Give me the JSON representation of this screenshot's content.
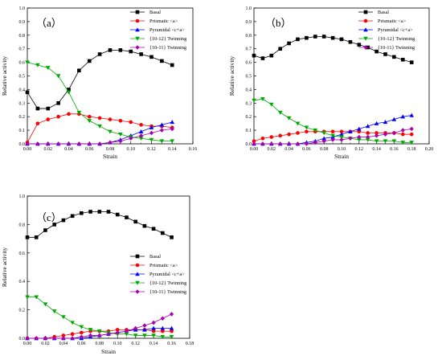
{
  "chart_data": [
    {
      "type": "line",
      "panel_label": "（a）",
      "xlabel": "Strain",
      "ylabel": "Relative activity",
      "xlim": [
        0,
        0.16
      ],
      "ylim": [
        0,
        1.0
      ],
      "xticks": [
        "0.00",
        "0.02",
        "0.04",
        "0.06",
        "0.08",
        "0.10",
        "0.12",
        "0.14",
        "0.16"
      ],
      "yticks": [
        "0.0",
        "0.1",
        "0.2",
        "0.3",
        "0.4",
        "0.5",
        "0.6",
        "0.7",
        "0.8",
        "0.9",
        "1.0"
      ],
      "legend_position": "top-right",
      "series": [
        {
          "name": "Basal",
          "color": "#000000",
          "marker": "square",
          "x": [
            0,
            0.01,
            0.02,
            0.03,
            0.04,
            0.05,
            0.06,
            0.07,
            0.08,
            0.09,
            0.1,
            0.11,
            0.12,
            0.13,
            0.14
          ],
          "y": [
            0.38,
            0.26,
            0.26,
            0.3,
            0.4,
            0.54,
            0.61,
            0.66,
            0.69,
            0.69,
            0.68,
            0.66,
            0.64,
            0.61,
            0.58
          ]
        },
        {
          "name": "Prismatic <a>",
          "color": "#ff0000",
          "marker": "circle",
          "x": [
            0,
            0.01,
            0.02,
            0.03,
            0.04,
            0.05,
            0.06,
            0.07,
            0.08,
            0.09,
            0.1,
            0.11,
            0.12,
            0.13,
            0.14
          ],
          "y": [
            0.01,
            0.15,
            0.18,
            0.2,
            0.22,
            0.22,
            0.2,
            0.19,
            0.18,
            0.17,
            0.16,
            0.14,
            0.13,
            0.13,
            0.12
          ]
        },
        {
          "name": "Pyramidal <c+a>",
          "color": "#0000ff",
          "marker": "triangle-up",
          "x": [
            0,
            0.01,
            0.02,
            0.03,
            0.04,
            0.05,
            0.06,
            0.07,
            0.08,
            0.09,
            0.1,
            0.11,
            0.12,
            0.13,
            0.14
          ],
          "y": [
            0,
            0,
            0,
            0,
            0,
            0,
            0,
            0,
            0.01,
            0.03,
            0.06,
            0.09,
            0.12,
            0.14,
            0.16
          ]
        },
        {
          "name": "{10-12} Twinning",
          "color": "#00aa00",
          "marker": "triangle-down",
          "x": [
            0,
            0.01,
            0.02,
            0.03,
            0.04,
            0.05,
            0.06,
            0.07,
            0.08,
            0.09,
            0.1,
            0.11,
            0.12,
            0.13,
            0.14
          ],
          "y": [
            0.6,
            0.58,
            0.56,
            0.5,
            0.38,
            0.23,
            0.17,
            0.13,
            0.09,
            0.07,
            0.05,
            0.04,
            0.03,
            0.02,
            0.02
          ]
        },
        {
          "name": "{10-11} Twinning",
          "color": "#aa00aa",
          "marker": "diamond",
          "x": [
            0,
            0.01,
            0.02,
            0.03,
            0.04,
            0.05,
            0.06,
            0.07,
            0.08,
            0.09,
            0.1,
            0.11,
            0.12,
            0.13,
            0.14
          ],
          "y": [
            0,
            0,
            0,
            0,
            0,
            0,
            0,
            0,
            0.01,
            0.02,
            0.04,
            0.06,
            0.08,
            0.1,
            0.11
          ]
        }
      ]
    },
    {
      "type": "line",
      "panel_label": "（b）",
      "xlabel": "Strain",
      "ylabel": "Relative activity",
      "xlim": [
        0,
        0.2
      ],
      "ylim": [
        0,
        1.0
      ],
      "xticks": [
        "0.00",
        "0.02",
        "0.04",
        "0.06",
        "0.08",
        "0.10",
        "0.12",
        "0.14",
        "0.16",
        "0.18",
        "0.20"
      ],
      "yticks": [
        "0.0",
        "0.1",
        "0.2",
        "0.3",
        "0.4",
        "0.5",
        "0.6",
        "0.7",
        "0.8",
        "0.9",
        "1.0"
      ],
      "legend_position": "top-right",
      "series": [
        {
          "name": "Basal",
          "color": "#000000",
          "marker": "square",
          "x": [
            0,
            0.01,
            0.02,
            0.03,
            0.04,
            0.05,
            0.06,
            0.07,
            0.08,
            0.09,
            0.1,
            0.11,
            0.12,
            0.13,
            0.14,
            0.15,
            0.16,
            0.17,
            0.18
          ],
          "y": [
            0.65,
            0.63,
            0.65,
            0.7,
            0.74,
            0.77,
            0.78,
            0.79,
            0.79,
            0.78,
            0.77,
            0.75,
            0.73,
            0.71,
            0.68,
            0.66,
            0.64,
            0.62,
            0.6
          ]
        },
        {
          "name": "Prismatic <a>",
          "color": "#ff0000",
          "marker": "circle",
          "x": [
            0,
            0.01,
            0.02,
            0.03,
            0.04,
            0.05,
            0.06,
            0.07,
            0.08,
            0.09,
            0.1,
            0.11,
            0.12,
            0.13,
            0.14,
            0.15,
            0.16,
            0.17,
            0.18
          ],
          "y": [
            0.02,
            0.04,
            0.05,
            0.06,
            0.07,
            0.08,
            0.09,
            0.09,
            0.09,
            0.09,
            0.09,
            0.09,
            0.09,
            0.08,
            0.08,
            0.08,
            0.08,
            0.07,
            0.07
          ]
        },
        {
          "name": "Pyramidal <c+a>",
          "color": "#0000ff",
          "marker": "triangle-up",
          "x": [
            0,
            0.01,
            0.02,
            0.03,
            0.04,
            0.05,
            0.06,
            0.07,
            0.08,
            0.09,
            0.1,
            0.11,
            0.12,
            0.13,
            0.14,
            0.15,
            0.16,
            0.17,
            0.18
          ],
          "y": [
            0,
            0,
            0,
            0,
            0,
            0,
            0.01,
            0.02,
            0.04,
            0.05,
            0.07,
            0.09,
            0.11,
            0.13,
            0.15,
            0.16,
            0.18,
            0.2,
            0.21
          ]
        },
        {
          "name": "{10-12} Twinning",
          "color": "#00aa00",
          "marker": "triangle-down",
          "x": [
            0,
            0.01,
            0.02,
            0.03,
            0.04,
            0.05,
            0.06,
            0.07,
            0.08,
            0.09,
            0.1,
            0.11,
            0.12,
            0.13,
            0.14,
            0.15,
            0.16,
            0.17,
            0.18
          ],
          "y": [
            0.32,
            0.33,
            0.29,
            0.23,
            0.19,
            0.15,
            0.12,
            0.1,
            0.08,
            0.06,
            0.05,
            0.04,
            0.03,
            0.03,
            0.02,
            0.02,
            0.02,
            0.01,
            0.01
          ]
        },
        {
          "name": "{10-11} Twinning",
          "color": "#aa00aa",
          "marker": "diamond",
          "x": [
            0,
            0.01,
            0.02,
            0.03,
            0.04,
            0.05,
            0.06,
            0.07,
            0.08,
            0.09,
            0.1,
            0.11,
            0.12,
            0.13,
            0.14,
            0.15,
            0.16,
            0.17,
            0.18
          ],
          "y": [
            0,
            0,
            0,
            0,
            0,
            0,
            0,
            0.01,
            0.02,
            0.03,
            0.03,
            0.04,
            0.05,
            0.05,
            0.06,
            0.07,
            0.08,
            0.1,
            0.11
          ]
        }
      ]
    },
    {
      "type": "line",
      "panel_label": "（c）",
      "xlabel": "Strain",
      "ylabel": "Relative activity",
      "xlim": [
        0,
        0.18
      ],
      "ylim": [
        0,
        1.0
      ],
      "xticks": [
        "0.00",
        "0.02",
        "0.04",
        "0.06",
        "0.08",
        "0.10",
        "0.12",
        "0.14",
        "0.16",
        "0.18"
      ],
      "yticks": [
        "0.0",
        "0.2",
        "0.4",
        "0.6",
        "0.8",
        "1.0"
      ],
      "legend_position": "center-right",
      "series": [
        {
          "name": "Basal",
          "color": "#000000",
          "marker": "square",
          "x": [
            0,
            0.01,
            0.02,
            0.03,
            0.04,
            0.05,
            0.06,
            0.07,
            0.08,
            0.09,
            0.1,
            0.11,
            0.12,
            0.13,
            0.14,
            0.15,
            0.16
          ],
          "y": [
            0.71,
            0.71,
            0.76,
            0.8,
            0.83,
            0.86,
            0.88,
            0.89,
            0.89,
            0.89,
            0.87,
            0.85,
            0.82,
            0.79,
            0.77,
            0.74,
            0.71
          ]
        },
        {
          "name": "Prismatic <a>",
          "color": "#ff0000",
          "marker": "circle",
          "x": [
            0,
            0.01,
            0.02,
            0.03,
            0.04,
            0.05,
            0.06,
            0.07,
            0.08,
            0.09,
            0.1,
            0.11,
            0.12,
            0.13,
            0.14,
            0.15,
            0.16
          ],
          "y": [
            0,
            0,
            0,
            0.01,
            0.02,
            0.03,
            0.04,
            0.05,
            0.05,
            0.05,
            0.06,
            0.06,
            0.06,
            0.06,
            0.05,
            0.05,
            0.05
          ]
        },
        {
          "name": "Pyramidal <c+a>",
          "color": "#0000ff",
          "marker": "triangle-up",
          "x": [
            0,
            0.01,
            0.02,
            0.03,
            0.04,
            0.05,
            0.06,
            0.07,
            0.08,
            0.09,
            0.1,
            0.11,
            0.12,
            0.13,
            0.14,
            0.15,
            0.16
          ],
          "y": [
            0,
            0,
            0,
            0,
            0,
            0,
            0,
            0.01,
            0.02,
            0.03,
            0.04,
            0.05,
            0.06,
            0.06,
            0.07,
            0.07,
            0.07
          ]
        },
        {
          "name": "{10-12} Twinning",
          "color": "#00aa00",
          "marker": "triangle-down",
          "x": [
            0,
            0.01,
            0.02,
            0.03,
            0.04,
            0.05,
            0.06,
            0.07,
            0.08,
            0.09,
            0.1,
            0.11,
            0.12,
            0.13,
            0.14,
            0.15,
            0.16
          ],
          "y": [
            0.29,
            0.29,
            0.24,
            0.19,
            0.15,
            0.11,
            0.08,
            0.06,
            0.05,
            0.04,
            0.03,
            0.03,
            0.02,
            0.02,
            0.02,
            0.01,
            0.01
          ]
        },
        {
          "name": "{10-11} Twinning",
          "color": "#aa00aa",
          "marker": "diamond",
          "x": [
            0,
            0.01,
            0.02,
            0.03,
            0.04,
            0.05,
            0.06,
            0.07,
            0.08,
            0.09,
            0.1,
            0.11,
            0.12,
            0.13,
            0.14,
            0.15,
            0.16
          ],
          "y": [
            0,
            0,
            0,
            0,
            0,
            0,
            0.01,
            0.02,
            0.02,
            0.03,
            0.04,
            0.05,
            0.07,
            0.09,
            0.11,
            0.14,
            0.17
          ]
        }
      ]
    }
  ]
}
